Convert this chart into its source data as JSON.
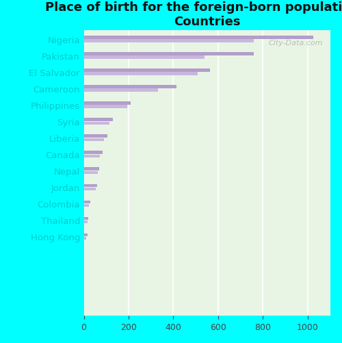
{
  "title": "Place of birth for the foreign-born population -\nCountries",
  "categories": [
    "Nigeria",
    "Pakistan",
    "El Salvador",
    "Cameroon",
    "Philippines",
    "Syria",
    "Liberia",
    "Canada",
    "Nepal",
    "Jordan",
    "Colombia",
    "Thailand",
    "Hong Kong"
  ],
  "values1": [
    1025,
    760,
    565,
    415,
    210,
    130,
    105,
    85,
    70,
    60,
    28,
    20,
    16
  ],
  "values2": [
    760,
    540,
    510,
    330,
    195,
    115,
    90,
    72,
    62,
    52,
    22,
    16,
    12
  ],
  "bar_color1": "#b39dca",
  "bar_color2": "#c8b8dd",
  "background_outer": "#00ffff",
  "background_plot": "#e8f5e4",
  "label_color": "#00cccc",
  "title_fontsize": 13,
  "xlim": [
    0,
    1100
  ],
  "xticks": [
    0,
    200,
    400,
    600,
    800,
    1000
  ],
  "watermark": "City-Data.com"
}
